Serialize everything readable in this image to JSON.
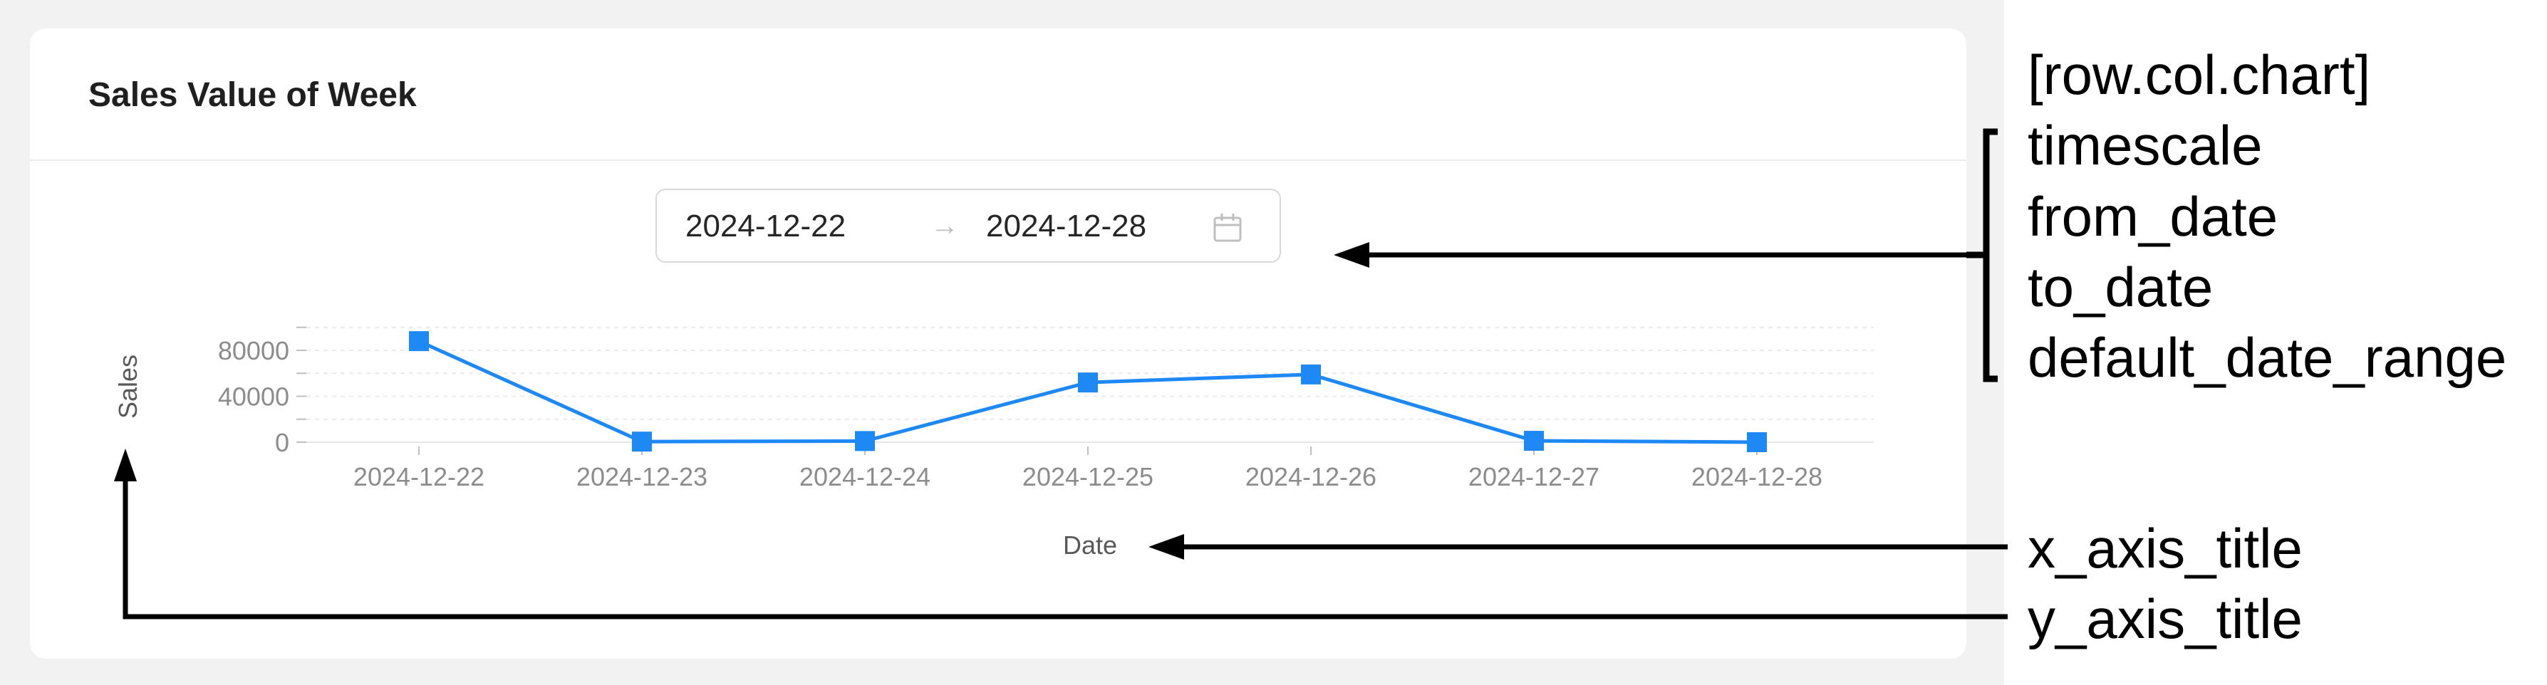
{
  "card": {
    "title": "Sales Value of Week"
  },
  "date_range": {
    "from": "2024-12-22",
    "separator": "→",
    "to": "2024-12-28"
  },
  "chart_data": {
    "type": "line",
    "x": [
      "2024-12-22",
      "2024-12-23",
      "2024-12-24",
      "2024-12-25",
      "2024-12-26",
      "2024-12-27",
      "2024-12-28"
    ],
    "series": [
      {
        "values": [
          88000,
          500,
          1000,
          52000,
          59000,
          1200,
          0
        ]
      }
    ],
    "xlabel": "Date",
    "ylabel": "Sales",
    "ylim": [
      0,
      90000
    ],
    "yticks": [
      "80000",
      "40000",
      "0"
    ],
    "ytick_values": [
      80000,
      40000,
      0
    ],
    "grid": true,
    "color": "#1e88f5"
  },
  "annotations": {
    "date_picker_fields": [
      "[row.col.chart]",
      "timescale",
      "from_date",
      "to_date",
      "default_date_range"
    ],
    "x_axis_title": "x_axis_title",
    "y_axis_title": "y_axis_title"
  }
}
